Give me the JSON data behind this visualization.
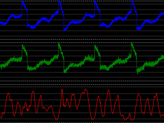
{
  "background": "#000000",
  "panel1_color": "#0000ff",
  "panel2_color": "#008000",
  "panel3_color": "#ff0000",
  "grid_color": "#aaaaaa",
  "figsize": [
    2.4,
    1.8
  ],
  "dpi": 100
}
